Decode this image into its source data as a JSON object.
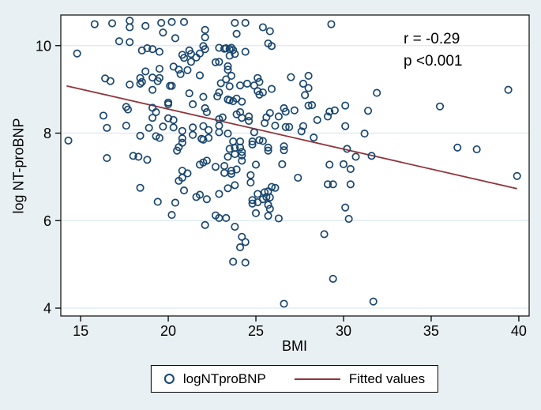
{
  "style": {
    "background": "#e9f0f3",
    "plot_background": "#ffffff",
    "grid_color": "#dce9f1",
    "border_color": "#1a1a1a",
    "marker_color": "#1a476f",
    "fit_line_color": "#90353b"
  },
  "annotation": {
    "line1": "r = -0.29",
    "line2": "p <0.001"
  },
  "legend": {
    "marker_label": "logNTproBNP",
    "line_label": "Fitted values"
  },
  "chart_data": {
    "type": "scatter",
    "title": "",
    "xlabel": "BMI",
    "ylabel": "log NT-proBNP",
    "xlim": [
      13.87,
      40.59
    ],
    "ylim": [
      3.82,
      10.7
    ],
    "x_ticks": [
      15,
      20,
      25,
      30,
      35,
      40
    ],
    "y_ticks": [
      4,
      6,
      8,
      10
    ],
    "grid": "horizontal",
    "legend_position": "bottom",
    "annotations": [
      {
        "text": "r = -0.29",
        "x": 33.6,
        "y": 10.1
      },
      {
        "text": "p <0.001",
        "x": 33.6,
        "y": 9.62
      }
    ],
    "series": [
      {
        "name": "logNTproBNP",
        "type": "scatter",
        "points": [
          [
            15.8,
            10.49
          ],
          [
            16.8,
            10.51
          ],
          [
            17.8,
            10.57
          ],
          [
            17.8,
            10.42
          ],
          [
            18.7,
            10.45
          ],
          [
            19.6,
            10.52
          ],
          [
            20.2,
            10.54
          ],
          [
            20.9,
            10.54
          ],
          [
            19.7,
            10.3
          ],
          [
            20.4,
            10.17
          ],
          [
            22.1,
            10.36
          ],
          [
            22.1,
            10.19
          ],
          [
            17.2,
            10.1
          ],
          [
            17.8,
            10.08
          ],
          [
            18.5,
            9.89
          ],
          [
            18.8,
            9.94
          ],
          [
            19.1,
            9.92
          ],
          [
            19.5,
            9.86
          ],
          [
            14.8,
            9.82
          ],
          [
            22.0,
            9.99
          ],
          [
            22.1,
            9.92
          ],
          [
            20.8,
            9.79
          ],
          [
            20.9,
            9.72
          ],
          [
            21.2,
            9.89
          ],
          [
            21.3,
            9.81
          ],
          [
            21.6,
            9.73
          ],
          [
            21.8,
            9.82
          ],
          [
            22.7,
            9.62
          ],
          [
            21.3,
            9.63
          ],
          [
            18.7,
            9.41
          ],
          [
            19.5,
            9.47
          ],
          [
            20.3,
            9.52
          ],
          [
            20.6,
            9.45
          ],
          [
            20.7,
            9.35
          ],
          [
            21.1,
            9.44
          ],
          [
            21.8,
            9.32
          ],
          [
            16.4,
            9.25
          ],
          [
            16.7,
            9.19
          ],
          [
            18.4,
            9.26
          ],
          [
            18.5,
            9.17
          ],
          [
            19.1,
            9.27
          ],
          [
            19.4,
            9.19
          ],
          [
            19.5,
            9.26
          ],
          [
            17.8,
            9.11
          ],
          [
            18.4,
            9.13
          ],
          [
            19.1,
            8.99
          ],
          [
            20.1,
            9.08
          ],
          [
            20.2,
            9.08
          ],
          [
            21.2,
            8.91
          ],
          [
            22.0,
            8.83
          ],
          [
            20.0,
            8.7
          ],
          [
            17.6,
            8.6
          ],
          [
            17.7,
            8.54
          ],
          [
            19.1,
            8.58
          ],
          [
            19.3,
            8.48
          ],
          [
            20.0,
            8.66
          ],
          [
            21.4,
            8.66
          ],
          [
            22.1,
            8.57
          ],
          [
            22.2,
            8.48
          ],
          [
            23.8,
            10.52
          ],
          [
            24.4,
            10.52
          ],
          [
            23.9,
            10.27
          ],
          [
            25.4,
            10.42
          ],
          [
            25.8,
            10.33
          ],
          [
            29.3,
            10.49
          ],
          [
            25.7,
            10.05
          ],
          [
            25.9,
            9.99
          ],
          [
            22.9,
            9.95
          ],
          [
            23.2,
            9.93
          ],
          [
            23.5,
            9.92
          ],
          [
            23.3,
            9.94
          ],
          [
            23.6,
            9.95
          ],
          [
            23.7,
            9.9
          ],
          [
            24.4,
            9.86
          ],
          [
            23.5,
            9.77
          ],
          [
            23.8,
            9.81
          ],
          [
            22.9,
            9.63
          ],
          [
            23.4,
            9.53
          ],
          [
            23.4,
            9.45
          ],
          [
            23.6,
            9.31
          ],
          [
            23.3,
            9.23
          ],
          [
            23.0,
            9.14
          ],
          [
            23.5,
            9.07
          ],
          [
            25.1,
            9.26
          ],
          [
            25.2,
            9.17
          ],
          [
            24.1,
            9.09
          ],
          [
            24.5,
            9.13
          ],
          [
            24.9,
            9.09
          ],
          [
            22.9,
            8.93
          ],
          [
            22.8,
            8.84
          ],
          [
            23.4,
            8.77
          ],
          [
            23.5,
            8.75
          ],
          [
            23.7,
            8.73
          ],
          [
            23.9,
            8.79
          ],
          [
            24.2,
            8.72
          ],
          [
            25.1,
            8.96
          ],
          [
            25.2,
            8.88
          ],
          [
            25.4,
            8.93
          ],
          [
            25.9,
            9.01
          ],
          [
            27.0,
            9.28
          ],
          [
            28.0,
            9.31
          ],
          [
            27.7,
            9.13
          ],
          [
            28.0,
            9.03
          ],
          [
            27.8,
            8.87
          ],
          [
            28.0,
            8.63
          ],
          [
            28.2,
            8.64
          ],
          [
            26.6,
            8.57
          ],
          [
            26.7,
            8.49
          ],
          [
            27.2,
            8.52
          ],
          [
            25.8,
            8.46
          ],
          [
            24.1,
            8.48
          ],
          [
            23.9,
            8.43
          ],
          [
            29.2,
            8.49
          ],
          [
            29.5,
            8.52
          ],
          [
            30.1,
            8.63
          ],
          [
            31.4,
            8.51
          ],
          [
            31.9,
            8.92
          ],
          [
            35.5,
            8.61
          ],
          [
            39.4,
            8.99
          ],
          [
            16.3,
            8.4
          ],
          [
            16.5,
            8.12
          ],
          [
            17.6,
            8.17
          ],
          [
            14.3,
            7.83
          ],
          [
            16.5,
            7.43
          ],
          [
            18.0,
            7.48
          ],
          [
            18.3,
            7.46
          ],
          [
            18.8,
            7.39
          ],
          [
            18.4,
            7.94
          ],
          [
            18.9,
            8.12
          ],
          [
            19.1,
            8.35
          ],
          [
            19.3,
            7.93
          ],
          [
            19.5,
            7.89
          ],
          [
            19.7,
            8.15
          ],
          [
            20.0,
            8.34
          ],
          [
            20.3,
            8.3
          ],
          [
            20.3,
            8.13
          ],
          [
            20.8,
            8.05
          ],
          [
            20.8,
            7.88
          ],
          [
            20.8,
            7.78
          ],
          [
            20.6,
            7.68
          ],
          [
            20.5,
            7.6
          ],
          [
            21.4,
            7.96
          ],
          [
            21.4,
            8.13
          ],
          [
            22.0,
            8.16
          ],
          [
            22.3,
            8.07
          ],
          [
            21.9,
            7.87
          ],
          [
            22.0,
            7.85
          ],
          [
            22.3,
            7.89
          ],
          [
            21.8,
            7.28
          ],
          [
            22.0,
            7.33
          ],
          [
            22.2,
            7.37
          ],
          [
            20.8,
            7.14
          ],
          [
            21.1,
            7.08
          ],
          [
            20.8,
            6.98
          ],
          [
            20.6,
            6.91
          ],
          [
            22.7,
            7.23
          ],
          [
            18.4,
            6.75
          ],
          [
            19.4,
            6.43
          ],
          [
            20.4,
            6.41
          ],
          [
            20.2,
            6.13
          ],
          [
            20.9,
            6.69
          ],
          [
            21.6,
            6.54
          ],
          [
            21.8,
            6.59
          ],
          [
            22.2,
            6.49
          ],
          [
            22.7,
            6.12
          ],
          [
            22.9,
            8.32
          ],
          [
            23.1,
            8.36
          ],
          [
            22.9,
            8.17
          ],
          [
            23.4,
            7.99
          ],
          [
            22.9,
            8.02
          ],
          [
            24.6,
            8.38
          ],
          [
            24.6,
            8.28
          ],
          [
            24.2,
            8.35
          ],
          [
            24.9,
            8.02
          ],
          [
            25.5,
            8.23
          ],
          [
            25.6,
            8.36
          ],
          [
            26.1,
            8.17
          ],
          [
            26.3,
            8.38
          ],
          [
            26.7,
            8.14
          ],
          [
            26.9,
            8.14
          ],
          [
            27.6,
            8.04
          ],
          [
            27.7,
            8.16
          ],
          [
            28.5,
            8.3
          ],
          [
            29.1,
            8.38
          ],
          [
            30.1,
            8.16
          ],
          [
            31.2,
            7.99
          ],
          [
            28.3,
            7.9
          ],
          [
            23.7,
            7.81
          ],
          [
            24.1,
            7.81
          ],
          [
            24.8,
            7.81
          ],
          [
            24.8,
            7.74
          ],
          [
            25.2,
            7.84
          ],
          [
            25.4,
            7.82
          ],
          [
            25.7,
            7.67
          ],
          [
            25.7,
            7.6
          ],
          [
            23.5,
            7.64
          ],
          [
            23.8,
            7.66
          ],
          [
            24.1,
            7.67
          ],
          [
            24.2,
            7.57
          ],
          [
            24.2,
            7.49
          ],
          [
            23.8,
            7.52
          ],
          [
            23.4,
            7.46
          ],
          [
            26.6,
            7.7
          ],
          [
            26.6,
            7.61
          ],
          [
            26.5,
            7.29
          ],
          [
            24.2,
            7.37
          ],
          [
            25.0,
            7.28
          ],
          [
            23.2,
            7.25
          ],
          [
            23.6,
            7.14
          ],
          [
            23.6,
            7.07
          ],
          [
            23.9,
            7.17
          ],
          [
            23.2,
            7.09
          ],
          [
            24.7,
            7.04
          ],
          [
            27.4,
            6.98
          ],
          [
            29.2,
            7.28
          ],
          [
            30.0,
            7.29
          ],
          [
            30.2,
            7.64
          ],
          [
            30.7,
            7.46
          ],
          [
            31.6,
            7.48
          ],
          [
            30.4,
            7.18
          ],
          [
            29.1,
            6.83
          ],
          [
            29.4,
            6.83
          ],
          [
            30.4,
            6.83
          ],
          [
            23.8,
            6.81
          ],
          [
            23.4,
            6.74
          ],
          [
            22.9,
            6.61
          ],
          [
            24.7,
            6.87
          ],
          [
            25.1,
            6.61
          ],
          [
            25.5,
            6.65
          ],
          [
            25.7,
            6.67
          ],
          [
            25.9,
            6.77
          ],
          [
            26.1,
            6.75
          ],
          [
            25.6,
            6.54
          ],
          [
            25.8,
            6.53
          ],
          [
            25.4,
            6.49
          ],
          [
            24.8,
            6.47
          ],
          [
            24.8,
            6.39
          ],
          [
            25.1,
            6.42
          ],
          [
            25.7,
            6.36
          ],
          [
            25.8,
            6.27
          ],
          [
            25.0,
            6.17
          ],
          [
            30.1,
            6.3
          ],
          [
            36.5,
            7.67
          ],
          [
            37.6,
            7.63
          ],
          [
            39.9,
            7.02
          ],
          [
            22.1,
            5.9
          ],
          [
            22.9,
            6.06
          ],
          [
            23.3,
            6.06
          ],
          [
            25.7,
            6.11
          ],
          [
            26.3,
            6.05
          ],
          [
            30.3,
            6.04
          ],
          [
            23.8,
            5.86
          ],
          [
            24.2,
            5.63
          ],
          [
            24.4,
            5.51
          ],
          [
            24.1,
            5.39
          ],
          [
            28.9,
            5.69
          ],
          [
            23.7,
            5.06
          ],
          [
            24.4,
            5.04
          ],
          [
            29.4,
            4.67
          ],
          [
            26.6,
            4.1
          ],
          [
            31.7,
            4.15
          ]
        ]
      },
      {
        "name": "Fitted values",
        "type": "line",
        "points": [
          [
            14.2,
            9.08
          ],
          [
            39.9,
            6.73
          ]
        ]
      }
    ]
  }
}
